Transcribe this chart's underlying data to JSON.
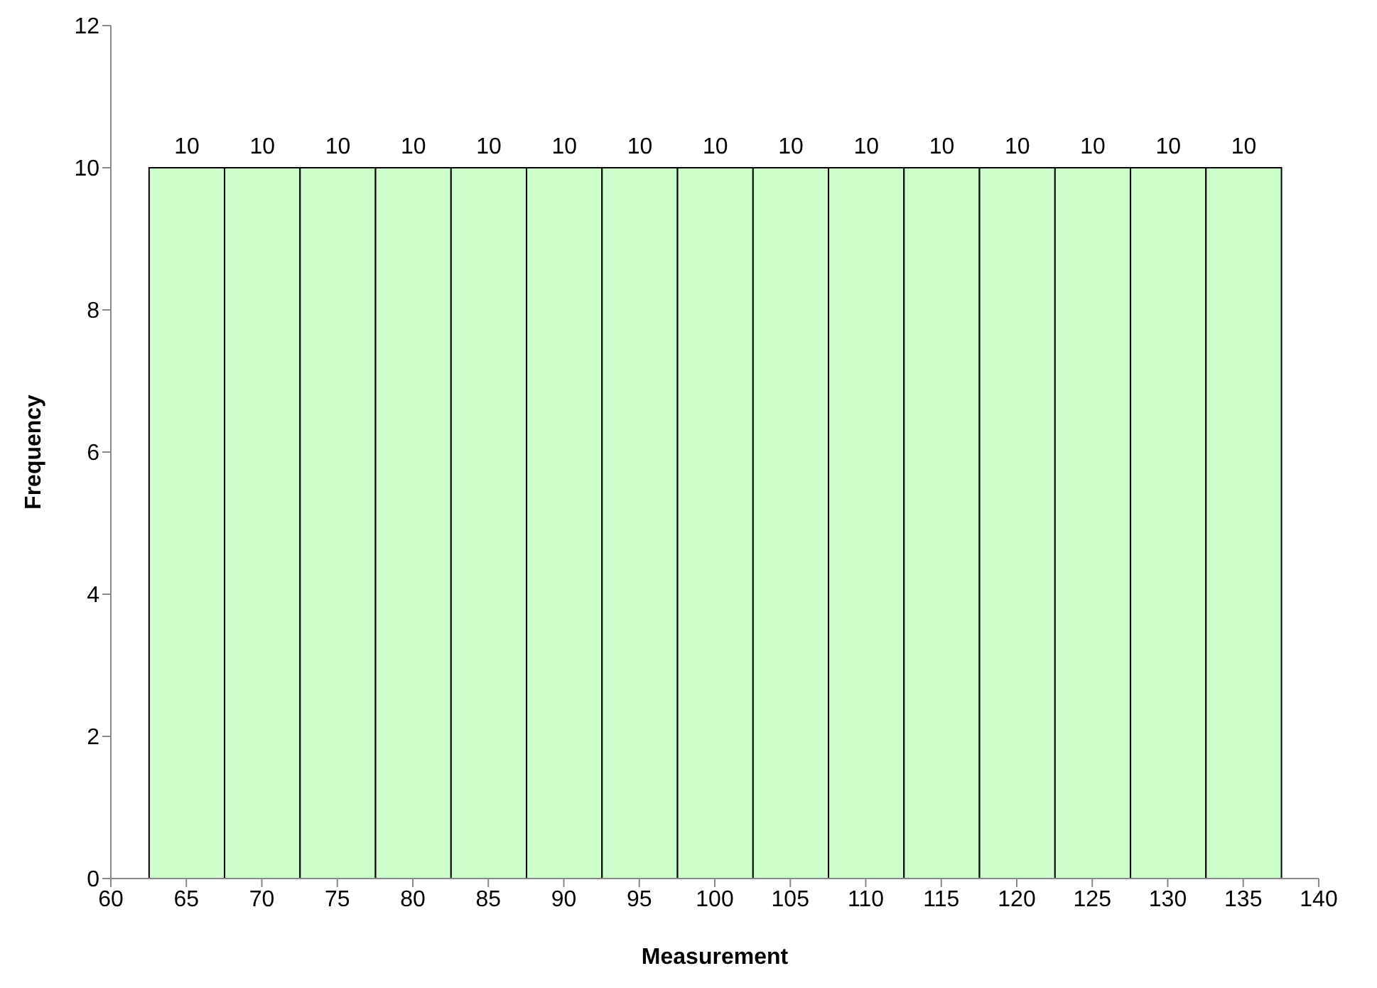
{
  "chart_data": {
    "type": "histogram",
    "xlabel": "Measurement",
    "ylabel": "Frequency",
    "bins": [
      62.5,
      67.5,
      72.5,
      77.5,
      82.5,
      87.5,
      92.5,
      97.5,
      102.5,
      107.5,
      112.5,
      117.5,
      122.5,
      127.5,
      132.5,
      137.5
    ],
    "values": [
      10,
      10,
      10,
      10,
      10,
      10,
      10,
      10,
      10,
      10,
      10,
      10,
      10,
      10,
      10
    ],
    "color": "#ccffcc",
    "xlim": [
      60,
      140
    ],
    "xticks": [
      60,
      65,
      70,
      75,
      80,
      85,
      90,
      95,
      100,
      105,
      110,
      115,
      120,
      125,
      130,
      135,
      140
    ],
    "ylim": [
      0,
      12
    ],
    "yticks": [
      0,
      2,
      4,
      6,
      8,
      10,
      12
    ],
    "data_labels": true,
    "grid": false
  }
}
